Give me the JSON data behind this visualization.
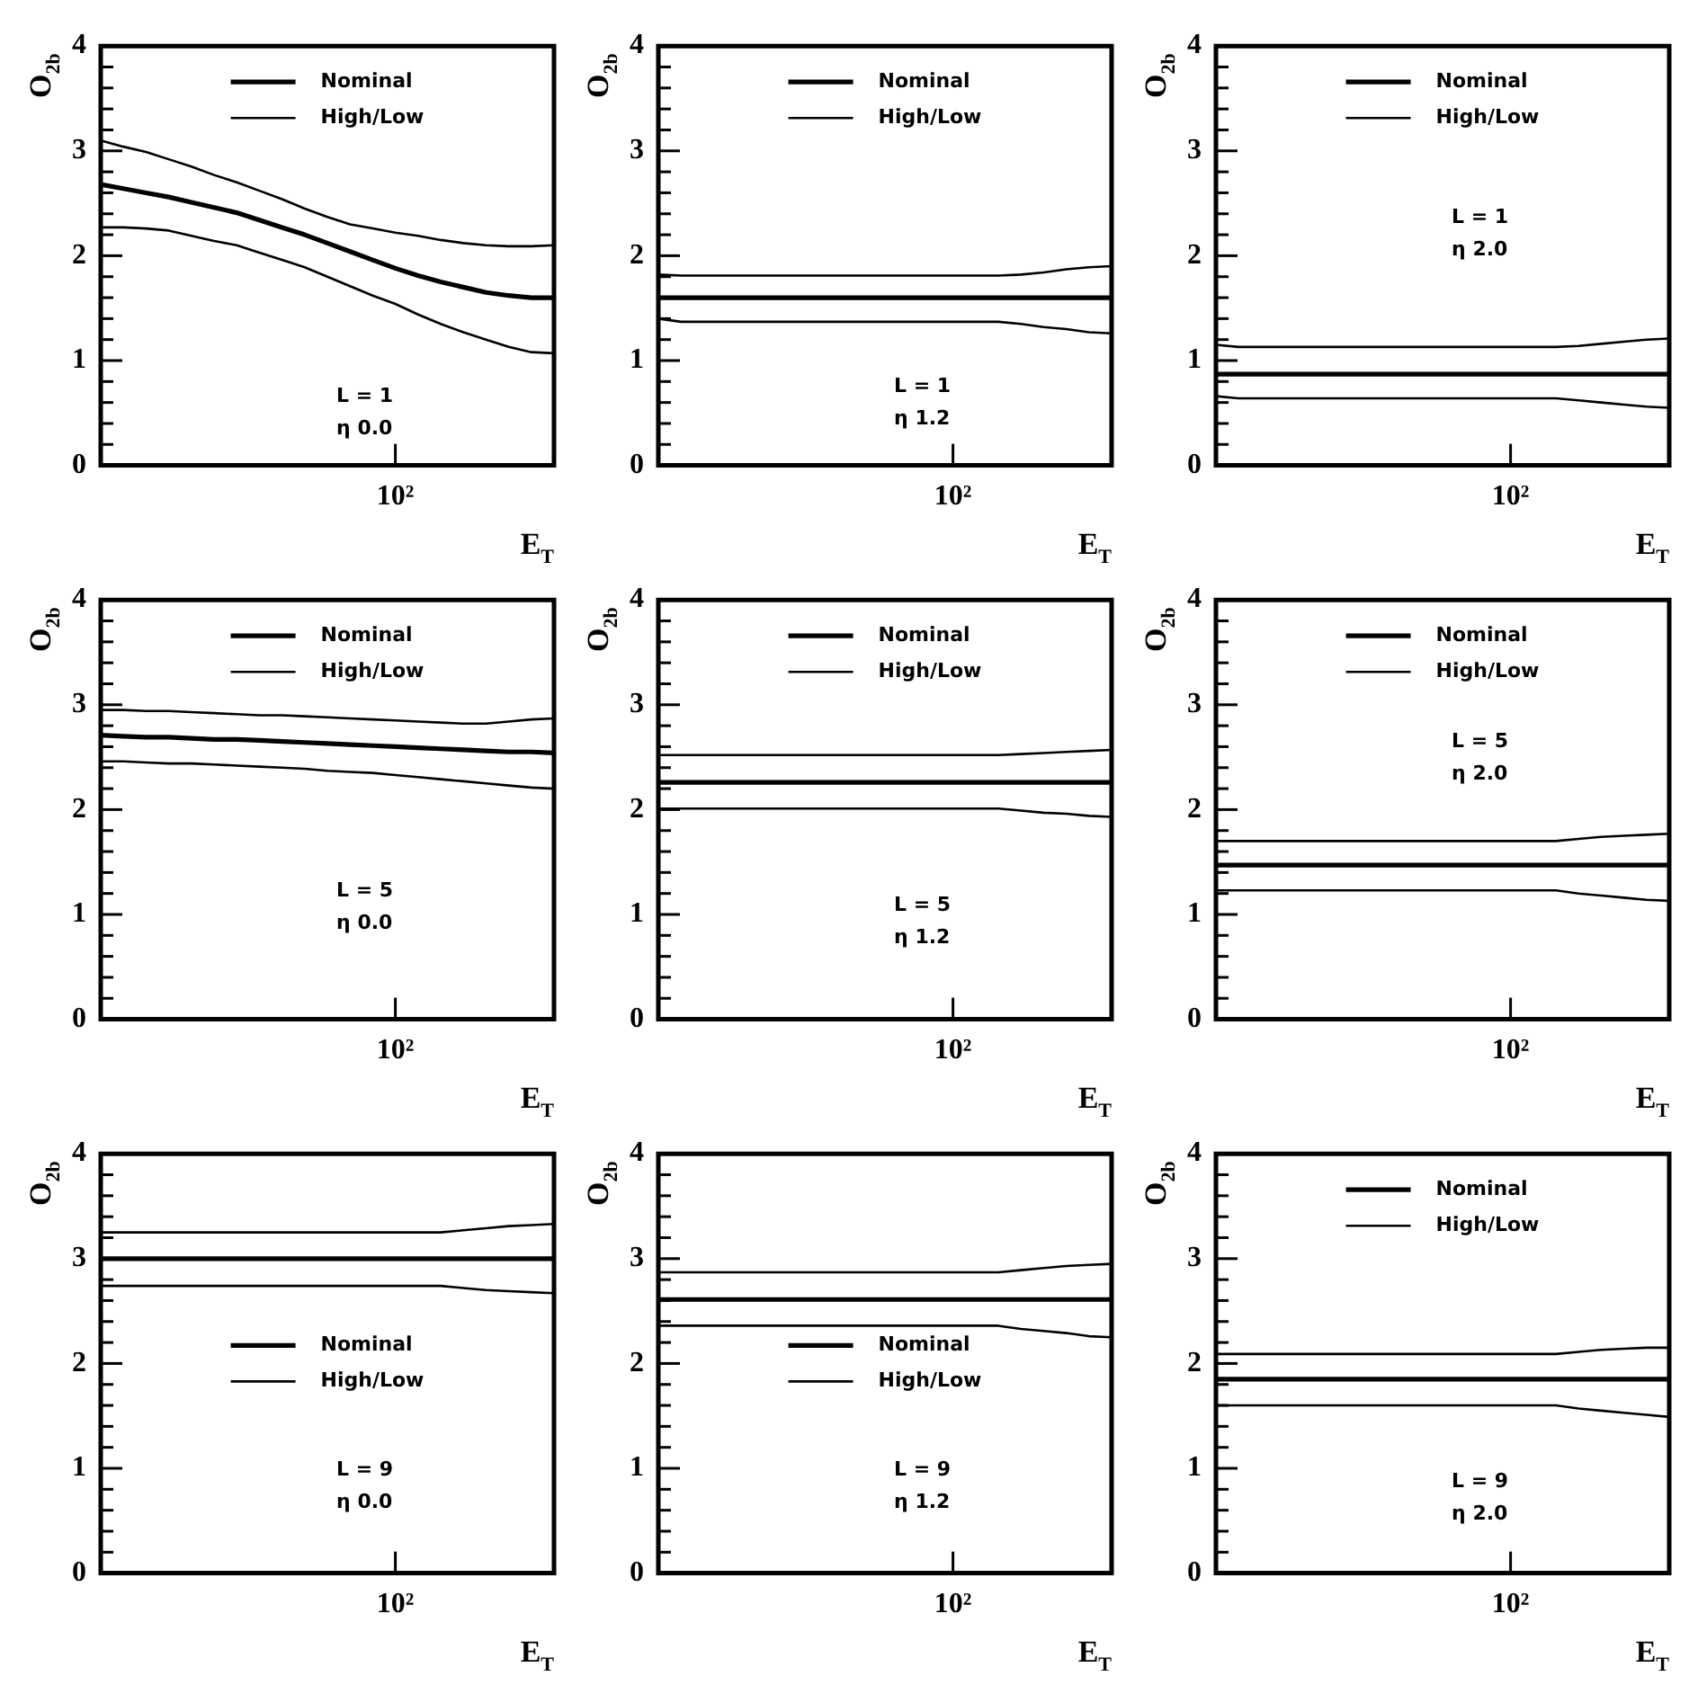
{
  "chart_data": [
    {
      "type": "line",
      "xlabel": "E$_{T}$",
      "ylabel": "O$_{2b}$",
      "legend": "top",
      "annotations": [
        "L = 1",
        "η 0.0"
      ],
      "ylim": [
        0,
        4
      ],
      "yticks": [
        0,
        {
          "value": 0.2,
          "label": null
        },
        {
          "value": 0.4,
          "label": null
        },
        {
          "value": 0.6,
          "label": null
        },
        {
          "value": 0.8,
          "label": null
        },
        1,
        {
          "value": 1.2,
          "label": null
        },
        {
          "value": 1.4,
          "label": null
        },
        {
          "value": 1.6,
          "label": null
        },
        {
          "value": 1.8,
          "label": null
        },
        2,
        {
          "value": 2.2,
          "label": null
        },
        {
          "value": 2.4,
          "label": null
        },
        {
          "value": 2.6,
          "label": null
        },
        {
          "value": 2.8,
          "label": null
        },
        3,
        {
          "value": 3.2,
          "label": null
        },
        {
          "value": 3.4,
          "label": null
        },
        {
          "value": 3.6,
          "label": null
        },
        {
          "value": 3.8,
          "label": null
        },
        4
      ],
      "categories": [
        null,
        null,
        null,
        null,
        null,
        null,
        null,
        null,
        null,
        null,
        null,
        null,
        null,
        "10²",
        null,
        null,
        null,
        null,
        null,
        null,
        null
      ],
      "series": [
        {
          "name": "Nominal",
          "color": "#000000",
          "values": [
            2.68,
            2.64,
            2.6,
            2.56,
            2.51,
            2.46,
            2.41,
            2.34,
            2.27,
            2.2,
            2.12,
            2.04,
            1.96,
            1.88,
            1.81,
            1.75,
            1.7,
            1.65,
            1.62,
            1.6,
            1.6
          ]
        },
        {
          "name": "High/Low",
          "color": "#000000",
          "values": [
            3.1,
            3.04,
            2.99,
            2.92,
            2.85,
            2.77,
            2.7,
            2.62,
            2.54,
            2.45,
            2.37,
            2.3,
            2.26,
            2.22,
            2.19,
            2.15,
            2.12,
            2.1,
            2.09,
            2.09,
            2.1
          ]
        },
        {
          "color": "#000000",
          "values": [
            2.27,
            2.27,
            2.26,
            2.24,
            2.19,
            2.14,
            2.1,
            2.03,
            1.96,
            1.89,
            1.8,
            1.71,
            1.62,
            1.54,
            1.44,
            1.35,
            1.27,
            1.2,
            1.13,
            1.08,
            1.07
          ]
        }
      ]
    },
    {
      "type": "line",
      "xlabel": "E$_{T}$",
      "ylabel": "O$_{2b}$",
      "legend": "top",
      "annotations": [
        "L = 1",
        "η 1.2"
      ],
      "ylim": [
        0,
        4
      ],
      "yticks": [
        0,
        {
          "value": 0.2,
          "label": null
        },
        {
          "value": 0.4,
          "label": null
        },
        {
          "value": 0.6,
          "label": null
        },
        {
          "value": 0.8,
          "label": null
        },
        1,
        {
          "value": 1.2,
          "label": null
        },
        {
          "value": 1.4,
          "label": null
        },
        {
          "value": 1.6,
          "label": null
        },
        {
          "value": 1.8,
          "label": null
        },
        2,
        {
          "value": 2.2,
          "label": null
        },
        {
          "value": 2.4,
          "label": null
        },
        {
          "value": 2.6,
          "label": null
        },
        {
          "value": 2.8,
          "label": null
        },
        3,
        {
          "value": 3.2,
          "label": null
        },
        {
          "value": 3.4,
          "label": null
        },
        {
          "value": 3.6,
          "label": null
        },
        {
          "value": 3.8,
          "label": null
        },
        4
      ],
      "categories": [
        null,
        null,
        null,
        null,
        null,
        null,
        null,
        null,
        null,
        null,
        null,
        null,
        null,
        "10²",
        null,
        null,
        null,
        null,
        null,
        null,
        null
      ],
      "series": [
        {
          "name": "Nominal",
          "color": "#000000",
          "values": [
            1.6,
            1.6,
            1.6,
            1.6,
            1.6,
            1.6,
            1.6,
            1.6,
            1.6,
            1.6,
            1.6,
            1.6,
            1.6,
            1.6,
            1.6,
            1.6,
            1.6,
            1.6,
            1.6,
            1.6,
            1.6
          ]
        },
        {
          "name": "High/Low",
          "color": "#000000",
          "values": [
            1.82,
            1.81,
            1.81,
            1.81,
            1.81,
            1.81,
            1.81,
            1.81,
            1.81,
            1.81,
            1.81,
            1.81,
            1.81,
            1.81,
            1.81,
            1.81,
            1.82,
            1.84,
            1.87,
            1.89,
            1.9
          ]
        },
        {
          "color": "#000000",
          "values": [
            1.4,
            1.37,
            1.37,
            1.37,
            1.37,
            1.37,
            1.37,
            1.37,
            1.37,
            1.37,
            1.37,
            1.37,
            1.37,
            1.37,
            1.37,
            1.37,
            1.35,
            1.32,
            1.3,
            1.27,
            1.26
          ]
        }
      ]
    },
    {
      "type": "line",
      "xlabel": "E$_{T}$",
      "ylabel": "O$_{2b}$",
      "legend": "top",
      "annotations": [
        "L = 1",
        "η 2.0"
      ],
      "ylim": [
        0,
        4
      ],
      "yticks": [
        0,
        {
          "value": 0.2,
          "label": null
        },
        {
          "value": 0.4,
          "label": null
        },
        {
          "value": 0.6,
          "label": null
        },
        {
          "value": 0.8,
          "label": null
        },
        1,
        {
          "value": 1.2,
          "label": null
        },
        {
          "value": 1.4,
          "label": null
        },
        {
          "value": 1.6,
          "label": null
        },
        {
          "value": 1.8,
          "label": null
        },
        2,
        {
          "value": 2.2,
          "label": null
        },
        {
          "value": 2.4,
          "label": null
        },
        {
          "value": 2.6,
          "label": null
        },
        {
          "value": 2.8,
          "label": null
        },
        3,
        {
          "value": 3.2,
          "label": null
        },
        {
          "value": 3.4,
          "label": null
        },
        {
          "value": 3.6,
          "label": null
        },
        {
          "value": 3.8,
          "label": null
        },
        4
      ],
      "categories": [
        null,
        null,
        null,
        null,
        null,
        null,
        null,
        null,
        null,
        null,
        null,
        null,
        null,
        "10²",
        null,
        null,
        null,
        null,
        null,
        null,
        null
      ],
      "series": [
        {
          "name": "Nominal",
          "color": "#000000",
          "values": [
            0.87,
            0.87,
            0.87,
            0.87,
            0.87,
            0.87,
            0.87,
            0.87,
            0.87,
            0.87,
            0.87,
            0.87,
            0.87,
            0.87,
            0.87,
            0.87,
            0.87,
            0.87,
            0.87,
            0.87,
            0.87
          ]
        },
        {
          "name": "High/Low",
          "color": "#000000",
          "values": [
            1.15,
            1.13,
            1.13,
            1.13,
            1.13,
            1.13,
            1.13,
            1.13,
            1.13,
            1.13,
            1.13,
            1.13,
            1.13,
            1.13,
            1.13,
            1.13,
            1.14,
            1.16,
            1.18,
            1.2,
            1.21
          ]
        },
        {
          "color": "#000000",
          "values": [
            0.66,
            0.64,
            0.64,
            0.64,
            0.64,
            0.64,
            0.64,
            0.64,
            0.64,
            0.64,
            0.64,
            0.64,
            0.64,
            0.64,
            0.64,
            0.64,
            0.62,
            0.6,
            0.58,
            0.56,
            0.55
          ]
        }
      ]
    },
    {
      "type": "line",
      "xlabel": "E$_{T}$",
      "ylabel": "O$_{2b}$",
      "legend": "top",
      "annotations": [
        "L = 5",
        "η 0.0"
      ],
      "ylim": [
        0,
        4
      ],
      "yticks": [
        0,
        {
          "value": 0.2,
          "label": null
        },
        {
          "value": 0.4,
          "label": null
        },
        {
          "value": 0.6,
          "label": null
        },
        {
          "value": 0.8,
          "label": null
        },
        1,
        {
          "value": 1.2,
          "label": null
        },
        {
          "value": 1.4,
          "label": null
        },
        {
          "value": 1.6,
          "label": null
        },
        {
          "value": 1.8,
          "label": null
        },
        2,
        {
          "value": 2.2,
          "label": null
        },
        {
          "value": 2.4,
          "label": null
        },
        {
          "value": 2.6,
          "label": null
        },
        {
          "value": 2.8,
          "label": null
        },
        3,
        {
          "value": 3.2,
          "label": null
        },
        {
          "value": 3.4,
          "label": null
        },
        {
          "value": 3.6,
          "label": null
        },
        {
          "value": 3.8,
          "label": null
        },
        4
      ],
      "categories": [
        null,
        null,
        null,
        null,
        null,
        null,
        null,
        null,
        null,
        null,
        null,
        null,
        null,
        "10²",
        null,
        null,
        null,
        null,
        null,
        null,
        null
      ],
      "series": [
        {
          "name": "Nominal",
          "color": "#000000",
          "values": [
            2.71,
            2.7,
            2.69,
            2.69,
            2.68,
            2.67,
            2.67,
            2.66,
            2.65,
            2.64,
            2.63,
            2.62,
            2.61,
            2.6,
            2.59,
            2.58,
            2.57,
            2.56,
            2.55,
            2.55,
            2.54
          ]
        },
        {
          "name": "High/Low",
          "color": "#000000",
          "values": [
            2.95,
            2.95,
            2.94,
            2.94,
            2.93,
            2.92,
            2.91,
            2.9,
            2.9,
            2.89,
            2.88,
            2.87,
            2.86,
            2.85,
            2.84,
            2.83,
            2.82,
            2.82,
            2.84,
            2.86,
            2.87
          ]
        },
        {
          "color": "#000000",
          "values": [
            2.46,
            2.46,
            2.45,
            2.44,
            2.44,
            2.43,
            2.42,
            2.41,
            2.4,
            2.39,
            2.37,
            2.36,
            2.35,
            2.33,
            2.31,
            2.29,
            2.27,
            2.25,
            2.23,
            2.21,
            2.2
          ]
        }
      ]
    },
    {
      "type": "line",
      "xlabel": "E$_{T}$",
      "ylabel": "O$_{2b}$",
      "legend": "top",
      "annotations": [
        "L = 5",
        "η 1.2"
      ],
      "ylim": [
        0,
        4
      ],
      "yticks": [
        0,
        {
          "value": 0.2,
          "label": null
        },
        {
          "value": 0.4,
          "label": null
        },
        {
          "value": 0.6,
          "label": null
        },
        {
          "value": 0.8,
          "label": null
        },
        1,
        {
          "value": 1.2,
          "label": null
        },
        {
          "value": 1.4,
          "label": null
        },
        {
          "value": 1.6,
          "label": null
        },
        {
          "value": 1.8,
          "label": null
        },
        2,
        {
          "value": 2.2,
          "label": null
        },
        {
          "value": 2.4,
          "label": null
        },
        {
          "value": 2.6,
          "label": null
        },
        {
          "value": 2.8,
          "label": null
        },
        3,
        {
          "value": 3.2,
          "label": null
        },
        {
          "value": 3.4,
          "label": null
        },
        {
          "value": 3.6,
          "label": null
        },
        {
          "value": 3.8,
          "label": null
        },
        4
      ],
      "categories": [
        null,
        null,
        null,
        null,
        null,
        null,
        null,
        null,
        null,
        null,
        null,
        null,
        null,
        "10²",
        null,
        null,
        null,
        null,
        null,
        null,
        null
      ],
      "series": [
        {
          "name": "Nominal",
          "color": "#000000",
          "values": [
            2.26,
            2.26,
            2.26,
            2.26,
            2.26,
            2.26,
            2.26,
            2.26,
            2.26,
            2.26,
            2.26,
            2.26,
            2.26,
            2.26,
            2.26,
            2.26,
            2.26,
            2.26,
            2.26,
            2.26,
            2.26
          ]
        },
        {
          "name": "High/Low",
          "color": "#000000",
          "values": [
            2.52,
            2.52,
            2.52,
            2.52,
            2.52,
            2.52,
            2.52,
            2.52,
            2.52,
            2.52,
            2.52,
            2.52,
            2.52,
            2.52,
            2.52,
            2.52,
            2.53,
            2.54,
            2.55,
            2.56,
            2.57
          ]
        },
        {
          "color": "#000000",
          "values": [
            2.01,
            2.01,
            2.01,
            2.01,
            2.01,
            2.01,
            2.01,
            2.01,
            2.01,
            2.01,
            2.01,
            2.01,
            2.01,
            2.01,
            2.01,
            2.01,
            1.99,
            1.97,
            1.96,
            1.94,
            1.93
          ]
        }
      ]
    },
    {
      "type": "line",
      "xlabel": "E$_{T}$",
      "ylabel": "O$_{2b}$",
      "legend": "top",
      "annotations": [
        "L = 5",
        "η 2.0"
      ],
      "ylim": [
        0,
        4
      ],
      "yticks": [
        0,
        {
          "value": 0.2,
          "label": null
        },
        {
          "value": 0.4,
          "label": null
        },
        {
          "value": 0.6,
          "label": null
        },
        {
          "value": 0.8,
          "label": null
        },
        1,
        {
          "value": 1.2,
          "label": null
        },
        {
          "value": 1.4,
          "label": null
        },
        {
          "value": 1.6,
          "label": null
        },
        {
          "value": 1.8,
          "label": null
        },
        2,
        {
          "value": 2.2,
          "label": null
        },
        {
          "value": 2.4,
          "label": null
        },
        {
          "value": 2.6,
          "label": null
        },
        {
          "value": 2.8,
          "label": null
        },
        3,
        {
          "value": 3.2,
          "label": null
        },
        {
          "value": 3.4,
          "label": null
        },
        {
          "value": 3.6,
          "label": null
        },
        {
          "value": 3.8,
          "label": null
        },
        4
      ],
      "categories": [
        null,
        null,
        null,
        null,
        null,
        null,
        null,
        null,
        null,
        null,
        null,
        null,
        null,
        "10²",
        null,
        null,
        null,
        null,
        null,
        null,
        null
      ],
      "series": [
        {
          "name": "Nominal",
          "color": "#000000",
          "values": [
            1.47,
            1.47,
            1.47,
            1.47,
            1.47,
            1.47,
            1.47,
            1.47,
            1.47,
            1.47,
            1.47,
            1.47,
            1.47,
            1.47,
            1.47,
            1.47,
            1.47,
            1.47,
            1.47,
            1.47,
            1.47
          ]
        },
        {
          "name": "High/Low",
          "color": "#000000",
          "values": [
            1.7,
            1.7,
            1.7,
            1.7,
            1.7,
            1.7,
            1.7,
            1.7,
            1.7,
            1.7,
            1.7,
            1.7,
            1.7,
            1.7,
            1.7,
            1.7,
            1.72,
            1.74,
            1.75,
            1.76,
            1.77
          ]
        },
        {
          "color": "#000000",
          "values": [
            1.23,
            1.23,
            1.23,
            1.23,
            1.23,
            1.23,
            1.23,
            1.23,
            1.23,
            1.23,
            1.23,
            1.23,
            1.23,
            1.23,
            1.23,
            1.23,
            1.2,
            1.18,
            1.16,
            1.14,
            1.13
          ]
        }
      ]
    },
    {
      "type": "line",
      "xlabel": "E$_{T}$",
      "ylabel": "O$_{2b}$",
      "legend": "center",
      "annotations": [
        "L = 9",
        "η 0.0"
      ],
      "ylim": [
        0,
        4
      ],
      "yticks": [
        0,
        {
          "value": 0.2,
          "label": null
        },
        {
          "value": 0.4,
          "label": null
        },
        {
          "value": 0.6,
          "label": null
        },
        {
          "value": 0.8,
          "label": null
        },
        1,
        {
          "value": 1.2,
          "label": null
        },
        {
          "value": 1.4,
          "label": null
        },
        {
          "value": 1.6,
          "label": null
        },
        {
          "value": 1.8,
          "label": null
        },
        2,
        {
          "value": 2.2,
          "label": null
        },
        {
          "value": 2.4,
          "label": null
        },
        {
          "value": 2.6,
          "label": null
        },
        {
          "value": 2.8,
          "label": null
        },
        3,
        {
          "value": 3.2,
          "label": null
        },
        {
          "value": 3.4,
          "label": null
        },
        {
          "value": 3.6,
          "label": null
        },
        {
          "value": 3.8,
          "label": null
        },
        4
      ],
      "categories": [
        null,
        null,
        null,
        null,
        null,
        null,
        null,
        null,
        null,
        null,
        null,
        null,
        null,
        "10²",
        null,
        null,
        null,
        null,
        null,
        null,
        null
      ],
      "series": [
        {
          "name": "Nominal",
          "color": "#000000",
          "values": [
            3.0,
            3.0,
            3.0,
            3.0,
            3.0,
            3.0,
            3.0,
            3.0,
            3.0,
            3.0,
            3.0,
            3.0,
            3.0,
            3.0,
            3.0,
            3.0,
            3.0,
            3.0,
            3.0,
            3.0,
            3.0
          ]
        },
        {
          "name": "High/Low",
          "color": "#000000",
          "values": [
            3.25,
            3.25,
            3.25,
            3.25,
            3.25,
            3.25,
            3.25,
            3.25,
            3.25,
            3.25,
            3.25,
            3.25,
            3.25,
            3.25,
            3.25,
            3.25,
            3.27,
            3.29,
            3.31,
            3.32,
            3.33
          ]
        },
        {
          "color": "#000000",
          "values": [
            2.74,
            2.74,
            2.74,
            2.74,
            2.74,
            2.74,
            2.74,
            2.74,
            2.74,
            2.74,
            2.74,
            2.74,
            2.74,
            2.74,
            2.74,
            2.74,
            2.72,
            2.7,
            2.69,
            2.68,
            2.67
          ]
        }
      ]
    },
    {
      "type": "line",
      "xlabel": "E$_{T}$",
      "ylabel": "O$_{2b}$",
      "legend": "center",
      "annotations": [
        "L = 9",
        "η 1.2"
      ],
      "ylim": [
        0,
        4
      ],
      "yticks": [
        0,
        {
          "value": 0.2,
          "label": null
        },
        {
          "value": 0.4,
          "label": null
        },
        {
          "value": 0.6,
          "label": null
        },
        {
          "value": 0.8,
          "label": null
        },
        1,
        {
          "value": 1.2,
          "label": null
        },
        {
          "value": 1.4,
          "label": null
        },
        {
          "value": 1.6,
          "label": null
        },
        {
          "value": 1.8,
          "label": null
        },
        2,
        {
          "value": 2.2,
          "label": null
        },
        {
          "value": 2.4,
          "label": null
        },
        {
          "value": 2.6,
          "label": null
        },
        {
          "value": 2.8,
          "label": null
        },
        3,
        {
          "value": 3.2,
          "label": null
        },
        {
          "value": 3.4,
          "label": null
        },
        {
          "value": 3.6,
          "label": null
        },
        {
          "value": 3.8,
          "label": null
        },
        4
      ],
      "categories": [
        null,
        null,
        null,
        null,
        null,
        null,
        null,
        null,
        null,
        null,
        null,
        null,
        null,
        "10²",
        null,
        null,
        null,
        null,
        null,
        null,
        null
      ],
      "series": [
        {
          "name": "Nominal",
          "color": "#000000",
          "values": [
            2.61,
            2.61,
            2.61,
            2.61,
            2.61,
            2.61,
            2.61,
            2.61,
            2.61,
            2.61,
            2.61,
            2.61,
            2.61,
            2.61,
            2.61,
            2.61,
            2.61,
            2.61,
            2.61,
            2.61,
            2.61
          ]
        },
        {
          "name": "High/Low",
          "color": "#000000",
          "values": [
            2.87,
            2.87,
            2.87,
            2.87,
            2.87,
            2.87,
            2.87,
            2.87,
            2.87,
            2.87,
            2.87,
            2.87,
            2.87,
            2.87,
            2.87,
            2.87,
            2.89,
            2.91,
            2.93,
            2.94,
            2.95
          ]
        },
        {
          "color": "#000000",
          "values": [
            2.36,
            2.36,
            2.36,
            2.36,
            2.36,
            2.36,
            2.36,
            2.36,
            2.36,
            2.36,
            2.36,
            2.36,
            2.36,
            2.36,
            2.36,
            2.36,
            2.33,
            2.31,
            2.29,
            2.26,
            2.25
          ]
        }
      ]
    },
    {
      "type": "line",
      "xlabel": "E$_{T}$",
      "ylabel": "O$_{2b}$",
      "legend": "top",
      "annotations": [
        "L = 9",
        "η 2.0"
      ],
      "ylim": [
        0,
        4
      ],
      "yticks": [
        0,
        {
          "value": 0.2,
          "label": null
        },
        {
          "value": 0.4,
          "label": null
        },
        {
          "value": 0.6,
          "label": null
        },
        {
          "value": 0.8,
          "label": null
        },
        1,
        {
          "value": 1.2,
          "label": null
        },
        {
          "value": 1.4,
          "label": null
        },
        {
          "value": 1.6,
          "label": null
        },
        {
          "value": 1.8,
          "label": null
        },
        2,
        {
          "value": 2.2,
          "label": null
        },
        {
          "value": 2.4,
          "label": null
        },
        {
          "value": 2.6,
          "label": null
        },
        {
          "value": 2.8,
          "label": null
        },
        3,
        {
          "value": 3.2,
          "label": null
        },
        {
          "value": 3.4,
          "label": null
        },
        {
          "value": 3.6,
          "label": null
        },
        {
          "value": 3.8,
          "label": null
        },
        4
      ],
      "categories": [
        null,
        null,
        null,
        null,
        null,
        null,
        null,
        null,
        null,
        null,
        null,
        null,
        null,
        "10²",
        null,
        null,
        null,
        null,
        null,
        null,
        null
      ],
      "series": [
        {
          "name": "Nominal",
          "color": "#000000",
          "values": [
            1.85,
            1.85,
            1.85,
            1.85,
            1.85,
            1.85,
            1.85,
            1.85,
            1.85,
            1.85,
            1.85,
            1.85,
            1.85,
            1.85,
            1.85,
            1.85,
            1.85,
            1.85,
            1.85,
            1.85,
            1.85
          ]
        },
        {
          "name": "High/Low",
          "color": "#000000",
          "values": [
            2.09,
            2.09,
            2.09,
            2.09,
            2.09,
            2.09,
            2.09,
            2.09,
            2.09,
            2.09,
            2.09,
            2.09,
            2.09,
            2.09,
            2.09,
            2.09,
            2.11,
            2.13,
            2.14,
            2.15,
            2.15
          ]
        },
        {
          "color": "#000000",
          "values": [
            1.6,
            1.6,
            1.6,
            1.6,
            1.6,
            1.6,
            1.6,
            1.6,
            1.6,
            1.6,
            1.6,
            1.6,
            1.6,
            1.6,
            1.6,
            1.6,
            1.57,
            1.55,
            1.53,
            1.51,
            1.49
          ]
        }
      ]
    }
  ]
}
